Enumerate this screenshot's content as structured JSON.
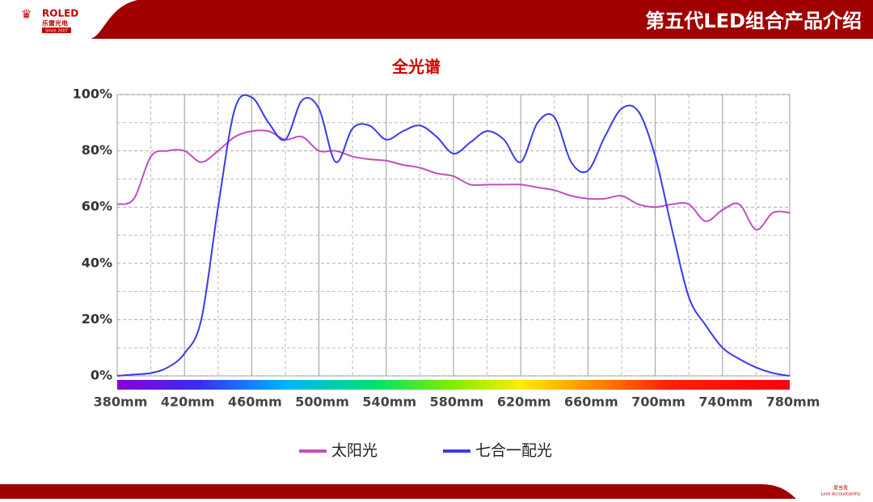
{
  "header": {
    "logo": "ROLED",
    "logo_cn": "乐雷光电",
    "logo_since": "Since 2007",
    "title": "第五代LED组合产品介绍"
  },
  "footer": {
    "slogan": "爱当责",
    "slogan_en": "Love Accountability"
  },
  "chart_data": {
    "type": "line",
    "title": "全光谱",
    "x": [
      380,
      390,
      400,
      410,
      420,
      430,
      440,
      450,
      460,
      470,
      480,
      490,
      500,
      510,
      520,
      530,
      540,
      550,
      560,
      570,
      580,
      590,
      600,
      610,
      620,
      630,
      640,
      650,
      660,
      670,
      680,
      690,
      700,
      710,
      720,
      730,
      740,
      750,
      760,
      770,
      780
    ],
    "series": [
      {
        "name": "太阳光",
        "color": "#c04fc0",
        "values": [
          61,
          63,
          78,
          80,
          80,
          76,
          80,
          85,
          87,
          87,
          84,
          85,
          80,
          80,
          78,
          77,
          76.5,
          75,
          74,
          72,
          71,
          68,
          68,
          68,
          68,
          67,
          66,
          64,
          63,
          63,
          64,
          61,
          60,
          61,
          61,
          55,
          59,
          61,
          52,
          58,
          58
        ]
      },
      {
        "name": "七合一配光",
        "color": "#3a3aee",
        "values": [
          0,
          0.5,
          1,
          3,
          8,
          20,
          60,
          95,
          99,
          90,
          84,
          98,
          95,
          76,
          88,
          89,
          84,
          87,
          89,
          85,
          79,
          83,
          87,
          84,
          76,
          90,
          92,
          76,
          73,
          85,
          95,
          94,
          78,
          52,
          28,
          18,
          10,
          6,
          3,
          1,
          0
        ]
      }
    ],
    "xlim": [
      380,
      780
    ],
    "xticks": [
      {
        "value": 380,
        "label": "380mm"
      },
      {
        "value": 420,
        "label": "420mm"
      },
      {
        "value": 460,
        "label": "460mm"
      },
      {
        "value": 500,
        "label": "500mm"
      },
      {
        "value": 540,
        "label": "540mm"
      },
      {
        "value": 580,
        "label": "580mm"
      },
      {
        "value": 620,
        "label": "620mm"
      },
      {
        "value": 660,
        "label": "660mm"
      },
      {
        "value": 700,
        "label": "700mm"
      },
      {
        "value": 740,
        "label": "740mm"
      },
      {
        "value": 780,
        "label": "780mm"
      }
    ],
    "ylim": [
      0,
      100
    ],
    "yticks": [
      {
        "value": 0,
        "label": "0%"
      },
      {
        "value": 20,
        "label": "20%"
      },
      {
        "value": 40,
        "label": "40%"
      },
      {
        "value": 60,
        "label": "60%"
      },
      {
        "value": 80,
        "label": "80%"
      },
      {
        "value": 100,
        "label": "100%"
      }
    ],
    "grid": true,
    "legend": "bottom"
  }
}
